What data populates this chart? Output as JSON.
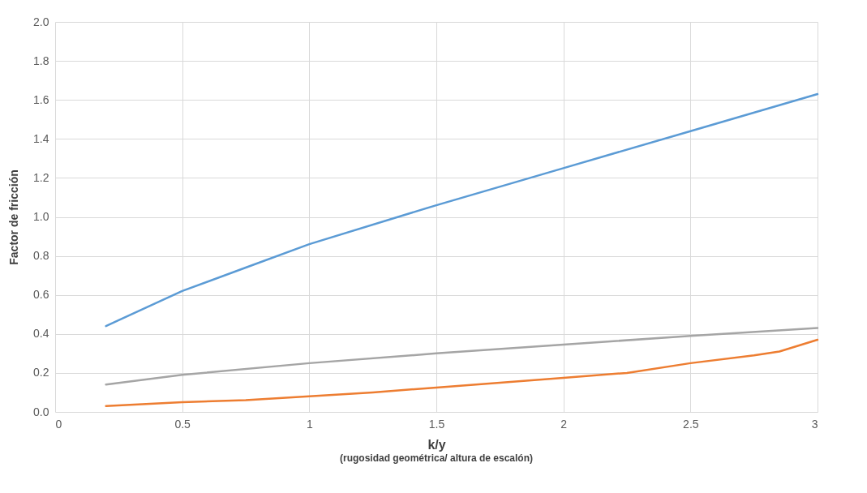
{
  "chart_data": {
    "type": "line",
    "xlabel": "k/y",
    "ylabel": "Factor de fricción",
    "annotations": [
      "(rugosidad geométrica/ altura de escalón)"
    ],
    "xlim": [
      0,
      3
    ],
    "xticks": [
      0,
      0.5,
      1,
      1.5,
      2,
      2.5,
      3
    ],
    "ylim": [
      0,
      2
    ],
    "yticks": [
      {
        "value": 0,
        "label": "0.0"
      },
      {
        "value": 0.2,
        "label": "0.2"
      },
      {
        "value": 0.4,
        "label": "0.4"
      },
      {
        "value": 0.6,
        "label": "0.6"
      },
      {
        "value": 0.8,
        "label": "0.8"
      },
      {
        "value": 1,
        "label": "1.0"
      },
      {
        "value": 1.2,
        "label": "1.2"
      },
      {
        "value": 1.4,
        "label": "1.4"
      },
      {
        "value": 1.6,
        "label": "1.6"
      },
      {
        "value": 1.8,
        "label": "1.8"
      },
      {
        "value": 2,
        "label": "2.0"
      }
    ],
    "grid": true,
    "legend": false,
    "marker": "none",
    "line_style": "solid",
    "series": [
      {
        "color": "#5b9bd5",
        "x": [
          0.2,
          0.25,
          0.5,
          0.75,
          1,
          1.5,
          2,
          2.5,
          3
        ],
        "values": [
          0.44,
          0.47,
          0.62,
          0.74,
          0.86,
          1.06,
          1.25,
          1.44,
          1.63
        ]
      },
      {
        "color": "#a5a5a5",
        "x": [
          0.2,
          0.5,
          1,
          1.5,
          2,
          2.5,
          3
        ],
        "values": [
          0.14,
          0.19,
          0.25,
          0.3,
          0.345,
          0.39,
          0.43
        ]
      },
      {
        "color": "#ed7d31",
        "x": [
          0.2,
          0.5,
          0.75,
          1,
          1.25,
          1.5,
          2,
          2.25,
          2.5,
          2.75,
          2.85,
          3
        ],
        "values": [
          0.03,
          0.05,
          0.06,
          0.08,
          0.1,
          0.125,
          0.175,
          0.2,
          0.25,
          0.29,
          0.31,
          0.37
        ]
      }
    ]
  }
}
